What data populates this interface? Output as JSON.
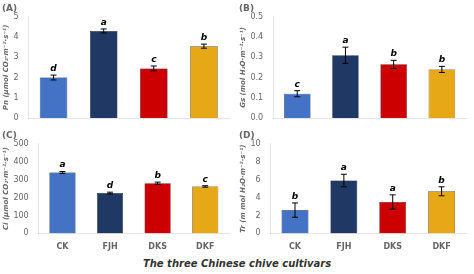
{
  "chart_data": [
    {
      "type": "bar",
      "title": "(A)",
      "ylabel": "Pn (μmol CO₂·m⁻²·s⁻¹)",
      "categories": [
        "CK",
        "FJH",
        "DKS",
        "DKF"
      ],
      "values": [
        2.0,
        4.3,
        2.45,
        3.55
      ],
      "errors": [
        0.12,
        0.1,
        0.12,
        0.1
      ],
      "annotations": [
        "d",
        "a",
        "c",
        "b"
      ],
      "colors": [
        "#4472C4",
        "#1F3864",
        "#CC0000",
        "#E6A817"
      ],
      "ylim": [
        0,
        5
      ],
      "yticks": [
        0,
        1,
        2,
        3,
        4,
        5
      ],
      "grid": false,
      "tick_labels": "y"
    },
    {
      "type": "bar",
      "title": "(B)",
      "ylabel": "Gs (mol H₂O·m⁻²·s⁻¹)",
      "categories": [
        "CK",
        "FJH",
        "DKS",
        "DKF"
      ],
      "values": [
        0.12,
        0.31,
        0.265,
        0.24
      ],
      "errors": [
        0.015,
        0.04,
        0.02,
        0.015
      ],
      "annotations": [
        "c",
        "a",
        "b",
        "b"
      ],
      "colors": [
        "#4472C4",
        "#1F3864",
        "#CC0000",
        "#E6A817"
      ],
      "ylim": [
        0,
        0.5
      ],
      "yticks": [
        {
          "value": 0.0,
          "label": "0.0"
        },
        0.1,
        0.2,
        0.3,
        0.4,
        0.5
      ],
      "grid": false,
      "tick_labels": "y"
    },
    {
      "type": "bar",
      "title": "(C)",
      "ylabel": "Ci (μmol CO₂·m⁻²·s⁻¹)",
      "categories": [
        "CK",
        "FJH",
        "DKS",
        "DKF"
      ],
      "values": [
        340,
        225,
        280,
        262
      ],
      "errors": [
        5,
        5,
        6,
        4
      ],
      "annotations": [
        "a",
        "d",
        "b",
        "c"
      ],
      "colors": [
        "#4472C4",
        "#1F3864",
        "#CC0000",
        "#E6A817"
      ],
      "ylim": [
        0,
        500
      ],
      "yticks": [
        0,
        100,
        200,
        300,
        400,
        500
      ],
      "grid": false,
      "tick_labels": true
    },
    {
      "type": "bar",
      "title": "(D)",
      "ylabel": "Tr (m mol H₂O·m⁻²·s⁻¹)",
      "categories": [
        "CK",
        "FJH",
        "DKS",
        "DKF"
      ],
      "values": [
        2.6,
        5.9,
        3.5,
        4.7
      ],
      "errors": [
        0.8,
        0.7,
        0.8,
        0.5
      ],
      "annotations": [
        "b",
        "a",
        "a",
        "b"
      ],
      "colors": [
        "#4472C4",
        "#1F3864",
        "#CC0000",
        "#E6A817"
      ],
      "ylim": [
        0,
        10
      ],
      "yticks": [
        0,
        2,
        4,
        6,
        8,
        10
      ],
      "grid": false,
      "tick_labels": true
    }
  ],
  "xlabel": "The three Chinese chive cultivars"
}
